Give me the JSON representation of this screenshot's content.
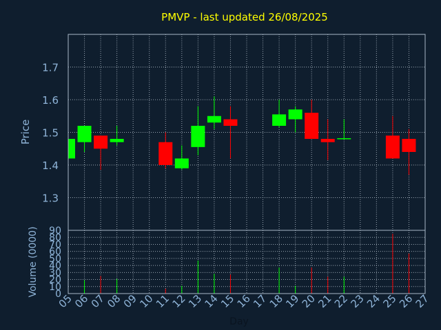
{
  "chart_data": {
    "type": "candlestick",
    "title": "PMVP - last updated 26/08/2025",
    "xlabel": "Day",
    "price_panel": {
      "ylabel": "Price",
      "ylim": [
        1.2,
        1.8
      ],
      "yticks": [
        "1.3",
        "1.4",
        "1.5",
        "1.6",
        "1.7"
      ]
    },
    "volume_panel": {
      "ylabel": "Volume (0000)",
      "ylim": [
        0,
        90
      ],
      "yticks": [
        "0",
        "10",
        "20",
        "30",
        "40",
        "50",
        "60",
        "70",
        "80",
        "90"
      ]
    },
    "x_ticks": [
      "05",
      "06",
      "07",
      "08",
      "09",
      "10",
      "11",
      "12",
      "13",
      "14",
      "15",
      "16",
      "17",
      "18",
      "19",
      "20",
      "21",
      "22",
      "23",
      "24",
      "25",
      "26",
      "27"
    ],
    "grid": true,
    "candles": [
      {
        "day": 5,
        "open": 1.42,
        "high": 1.48,
        "low": 1.42,
        "close": 1.48,
        "volume": 0
      },
      {
        "day": 6,
        "open": 1.47,
        "high": 1.52,
        "low": 1.44,
        "close": 1.52,
        "volume": 19
      },
      {
        "day": 7,
        "open": 1.49,
        "high": 1.49,
        "low": 1.385,
        "close": 1.45,
        "volume": 25
      },
      {
        "day": 8,
        "open": 1.47,
        "high": 1.52,
        "low": 1.46,
        "close": 1.48,
        "volume": 21
      },
      {
        "day": 11,
        "open": 1.47,
        "high": 1.5,
        "low": 1.39,
        "close": 1.4,
        "volume": 7
      },
      {
        "day": 12,
        "open": 1.39,
        "high": 1.46,
        "low": 1.385,
        "close": 1.42,
        "volume": 11
      },
      {
        "day": 13,
        "open": 1.455,
        "high": 1.58,
        "low": 1.43,
        "close": 1.52,
        "volume": 47
      },
      {
        "day": 14,
        "open": 1.53,
        "high": 1.61,
        "low": 1.51,
        "close": 1.55,
        "volume": 28
      },
      {
        "day": 15,
        "open": 1.54,
        "high": 1.58,
        "low": 1.42,
        "close": 1.52,
        "volume": 27
      },
      {
        "day": 18,
        "open": 1.52,
        "high": 1.6,
        "low": 1.515,
        "close": 1.555,
        "volume": 37
      },
      {
        "day": 19,
        "open": 1.54,
        "high": 1.58,
        "low": 1.5,
        "close": 1.57,
        "volume": 11
      },
      {
        "day": 20,
        "open": 1.56,
        "high": 1.6,
        "low": 1.48,
        "close": 1.48,
        "volume": 37
      },
      {
        "day": 21,
        "open": 1.48,
        "high": 1.54,
        "low": 1.415,
        "close": 1.47,
        "volume": 24
      },
      {
        "day": 22,
        "open": 1.48,
        "high": 1.54,
        "low": 1.48,
        "close": 1.482,
        "volume": 24
      },
      {
        "day": 25,
        "open": 1.49,
        "high": 1.55,
        "low": 1.42,
        "close": 1.42,
        "volume": 85
      },
      {
        "day": 26,
        "open": 1.48,
        "high": 1.51,
        "low": 1.37,
        "close": 1.44,
        "volume": 57
      }
    ],
    "colors": {
      "up": "#00ff00",
      "down": "#ff0000",
      "background": "#0f1e2e",
      "frame": "#a8b8c8",
      "grid": "#c8d4e0",
      "title": "#ffff00",
      "labels": "#8fb4d8"
    }
  }
}
